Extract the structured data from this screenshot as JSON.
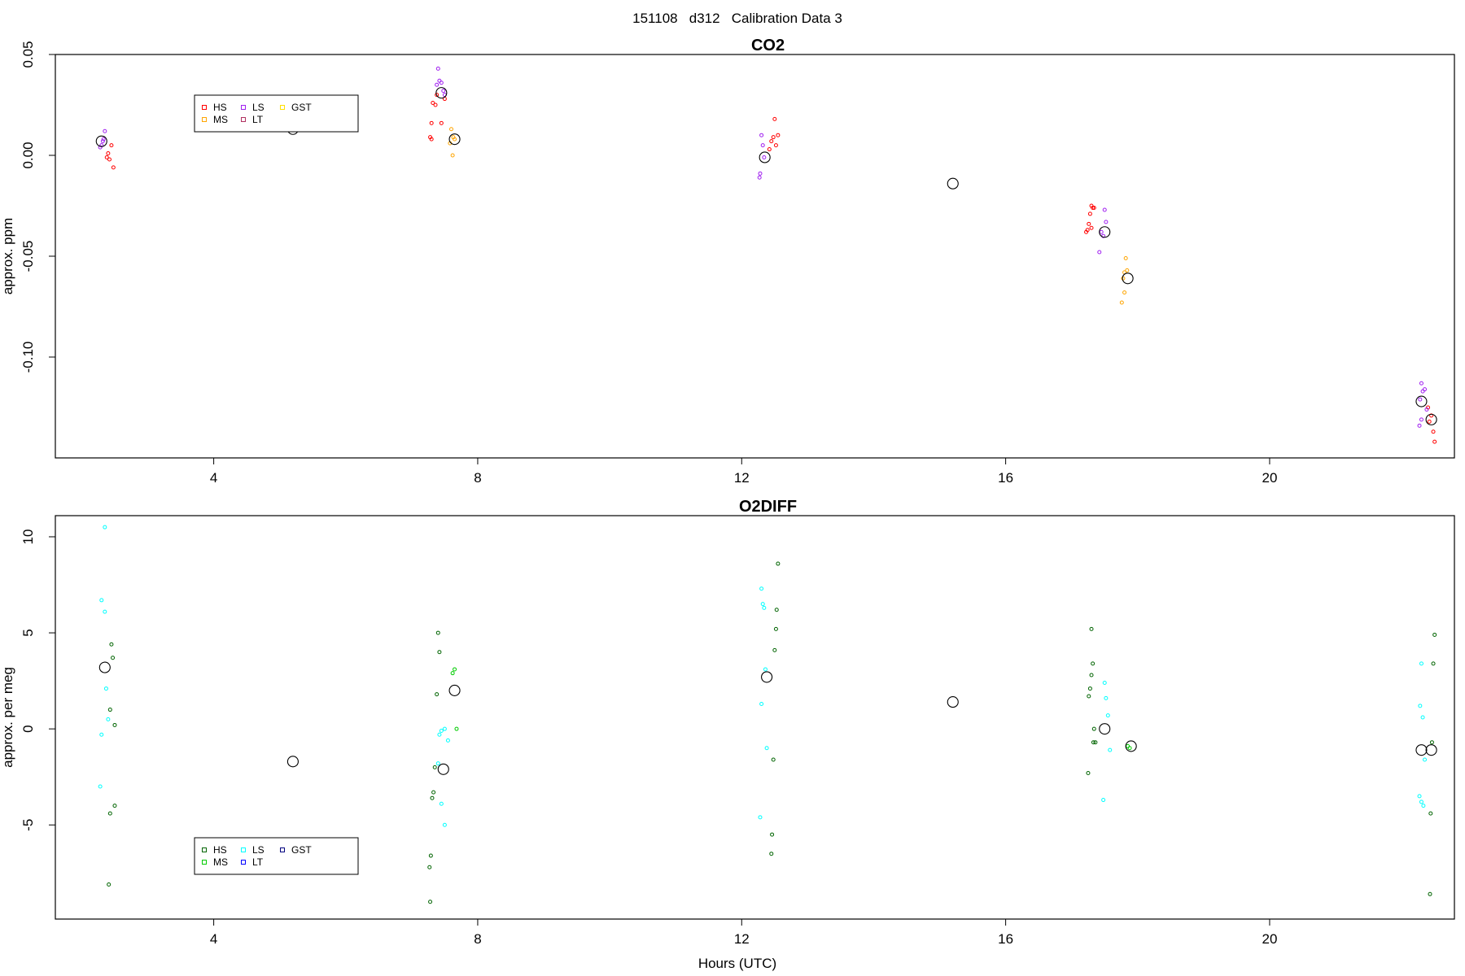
{
  "figure": {
    "title": "151108   d312   Calibration Data 3",
    "xlabel": "Hours (UTC)"
  },
  "chart_data": [
    {
      "type": "scatter",
      "title": "CO2",
      "xlabel": "",
      "ylabel": "approx. ppm",
      "xlim": [
        1.6,
        22.8
      ],
      "ylim": [
        -0.15,
        0.05
      ],
      "xticks": [
        4,
        8,
        12,
        16,
        20
      ],
      "yticks": [
        -0.1,
        -0.05,
        0.0,
        0.05
      ],
      "ytick_labels": [
        "-0.10",
        "-0.05",
        "0.00",
        "0.05"
      ],
      "grid": false,
      "legend": {
        "position": "top-left",
        "entries": [
          {
            "name": "HS",
            "color": "#ff0000"
          },
          {
            "name": "MS",
            "color": "#ffa500"
          },
          {
            "name": "LS",
            "color": "#a020f0"
          },
          {
            "name": "LT",
            "color": "#b03060"
          },
          {
            "name": "GST",
            "color": "#ffe000"
          }
        ]
      },
      "series": [
        {
          "name": "HS",
          "color": "#ff0000",
          "points": [
            [
              2.45,
              0.005
            ],
            [
              2.4,
              0.001
            ],
            [
              2.38,
              -0.001
            ],
            [
              2.42,
              -0.002
            ],
            [
              2.48,
              -0.006
            ],
            [
              7.3,
              0.016
            ],
            [
              7.32,
              0.026
            ],
            [
              7.36,
              0.025
            ],
            [
              7.38,
              0.03
            ],
            [
              7.28,
              0.009
            ],
            [
              7.3,
              0.008
            ],
            [
              7.45,
              0.016
            ],
            [
              7.5,
              0.028
            ],
            [
              12.45,
              0.007
            ],
            [
              12.48,
              0.009
            ],
            [
              12.5,
              0.018
            ],
            [
              12.52,
              0.005
            ],
            [
              12.42,
              0.003
            ],
            [
              12.55,
              0.01
            ],
            [
              17.3,
              -0.025
            ],
            [
              17.32,
              -0.026
            ],
            [
              17.34,
              -0.026
            ],
            [
              17.28,
              -0.029
            ],
            [
              17.26,
              -0.034
            ],
            [
              17.24,
              -0.037
            ],
            [
              17.22,
              -0.038
            ],
            [
              17.3,
              -0.036
            ],
            [
              22.4,
              -0.125
            ],
            [
              22.45,
              -0.129
            ],
            [
              22.48,
              -0.137
            ],
            [
              22.5,
              -0.142
            ],
            [
              22.42,
              -0.132
            ]
          ]
        },
        {
          "name": "MS",
          "color": "#ffa500",
          "points": [
            [
              7.6,
              0.013
            ],
            [
              7.63,
              0.009
            ],
            [
              7.58,
              0.006
            ],
            [
              7.65,
              0.008
            ],
            [
              7.62,
              0.0
            ],
            [
              17.82,
              -0.051
            ],
            [
              17.8,
              -0.058
            ],
            [
              17.78,
              -0.061
            ],
            [
              17.8,
              -0.068
            ],
            [
              17.76,
              -0.073
            ],
            [
              17.84,
              -0.057
            ]
          ]
        },
        {
          "name": "LS",
          "color": "#a020f0",
          "points": [
            [
              2.3,
              0.005
            ],
            [
              2.32,
              0.007
            ],
            [
              2.35,
              0.012
            ],
            [
              2.28,
              0.004
            ],
            [
              2.33,
              0.008
            ],
            [
              7.4,
              0.043
            ],
            [
              7.45,
              0.036
            ],
            [
              7.48,
              0.032
            ],
            [
              7.5,
              0.03
            ],
            [
              7.42,
              0.037
            ],
            [
              7.38,
              0.035
            ],
            [
              12.3,
              0.01
            ],
            [
              12.32,
              0.005
            ],
            [
              12.34,
              -0.001
            ],
            [
              12.28,
              -0.009
            ],
            [
              12.27,
              -0.011
            ],
            [
              17.5,
              -0.027
            ],
            [
              17.52,
              -0.033
            ],
            [
              17.45,
              -0.038
            ],
            [
              17.48,
              -0.04
            ],
            [
              17.42,
              -0.048
            ],
            [
              22.3,
              -0.113
            ],
            [
              22.32,
              -0.117
            ],
            [
              22.35,
              -0.116
            ],
            [
              22.28,
              -0.121
            ],
            [
              22.3,
              -0.131
            ],
            [
              22.27,
              -0.134
            ],
            [
              22.38,
              -0.126
            ]
          ]
        },
        {
          "name": "mean",
          "color": "#000000",
          "marker": "large-circle",
          "points": [
            [
              2.3,
              0.007
            ],
            [
              5.2,
              0.013
            ],
            [
              7.45,
              0.031
            ],
            [
              7.65,
              0.008
            ],
            [
              12.35,
              -0.001
            ],
            [
              15.2,
              -0.014
            ],
            [
              17.5,
              -0.038
            ],
            [
              17.85,
              -0.061
            ],
            [
              22.3,
              -0.122
            ],
            [
              22.45,
              -0.131
            ]
          ]
        }
      ]
    },
    {
      "type": "scatter",
      "title": "O2DIFF",
      "xlabel": "Hours (UTC)",
      "ylabel": "approx. per meg",
      "xlim": [
        1.6,
        22.8
      ],
      "ylim": [
        -9.9,
        11.1
      ],
      "xticks": [
        4,
        8,
        12,
        16,
        20
      ],
      "yticks": [
        -5,
        0,
        5,
        10
      ],
      "ytick_labels": [
        "-5",
        "0",
        "5",
        "10"
      ],
      "grid": false,
      "legend": {
        "position": "bottom-left",
        "entries": [
          {
            "name": "HS",
            "color": "#006400"
          },
          {
            "name": "MS",
            "color": "#00cc00"
          },
          {
            "name": "LS",
            "color": "#00ffff"
          },
          {
            "name": "LT",
            "color": "#0000ff"
          },
          {
            "name": "GST",
            "color": "#000080"
          }
        ]
      },
      "series": [
        {
          "name": "HS",
          "color": "#006400",
          "points": [
            [
              2.45,
              4.4
            ],
            [
              2.47,
              3.7
            ],
            [
              2.43,
              1.0
            ],
            [
              2.5,
              0.2
            ],
            [
              2.5,
              -4.0
            ],
            [
              2.43,
              -4.4
            ],
            [
              2.41,
              -8.1
            ],
            [
              7.4,
              5.0
            ],
            [
              7.42,
              4.0
            ],
            [
              7.38,
              1.8
            ],
            [
              7.35,
              -2.0
            ],
            [
              7.33,
              -3.3
            ],
            [
              7.31,
              -3.6
            ],
            [
              7.29,
              -6.6
            ],
            [
              7.27,
              -7.2
            ],
            [
              7.28,
              -9.0
            ],
            [
              12.55,
              8.6
            ],
            [
              12.53,
              6.2
            ],
            [
              12.52,
              5.2
            ],
            [
              12.5,
              4.1
            ],
            [
              12.48,
              -1.6
            ],
            [
              12.46,
              -5.5
            ],
            [
              12.45,
              -6.5
            ],
            [
              17.3,
              5.2
            ],
            [
              17.32,
              3.4
            ],
            [
              17.3,
              2.8
            ],
            [
              17.28,
              2.1
            ],
            [
              17.26,
              1.7
            ],
            [
              17.34,
              0.0
            ],
            [
              17.36,
              -0.7
            ],
            [
              17.33,
              -0.7
            ],
            [
              17.25,
              -2.3
            ],
            [
              22.5,
              4.9
            ],
            [
              22.48,
              3.4
            ],
            [
              22.46,
              -0.7
            ],
            [
              22.44,
              -4.4
            ],
            [
              22.43,
              -8.6
            ]
          ]
        },
        {
          "name": "MS",
          "color": "#00cc00",
          "points": [
            [
              7.65,
              3.1
            ],
            [
              7.62,
              2.9
            ],
            [
              7.68,
              0.0
            ],
            [
              17.85,
              -0.9
            ],
            [
              17.88,
              -1.0
            ]
          ]
        },
        {
          "name": "LS",
          "color": "#00ffff",
          "points": [
            [
              2.35,
              10.5
            ],
            [
              2.3,
              6.7
            ],
            [
              2.35,
              6.1
            ],
            [
              2.37,
              2.1
            ],
            [
              2.4,
              0.5
            ],
            [
              2.3,
              -0.3
            ],
            [
              2.28,
              -3.0
            ],
            [
              7.5,
              0.0
            ],
            [
              7.45,
              -0.1
            ],
            [
              7.42,
              -0.3
            ],
            [
              7.55,
              -0.6
            ],
            [
              7.4,
              -1.8
            ],
            [
              7.45,
              -3.9
            ],
            [
              7.5,
              -5.0
            ],
            [
              12.3,
              7.3
            ],
            [
              12.32,
              6.5
            ],
            [
              12.34,
              6.3
            ],
            [
              12.36,
              3.1
            ],
            [
              12.3,
              1.3
            ],
            [
              12.38,
              -1.0
            ],
            [
              12.28,
              -4.6
            ],
            [
              17.5,
              2.4
            ],
            [
              17.52,
              1.6
            ],
            [
              17.55,
              0.7
            ],
            [
              17.58,
              -1.1
            ],
            [
              17.48,
              -3.7
            ],
            [
              22.3,
              3.4
            ],
            [
              22.28,
              1.2
            ],
            [
              22.32,
              0.6
            ],
            [
              22.35,
              -1.6
            ],
            [
              22.27,
              -3.5
            ],
            [
              22.3,
              -3.8
            ],
            [
              22.33,
              -4.0
            ]
          ]
        },
        {
          "name": "mean",
          "color": "#000000",
          "marker": "large-circle",
          "points": [
            [
              2.35,
              3.2
            ],
            [
              5.2,
              -1.7
            ],
            [
              7.48,
              -2.1
            ],
            [
              7.65,
              2.0
            ],
            [
              12.38,
              2.7
            ],
            [
              15.2,
              1.4
            ],
            [
              17.5,
              0.0
            ],
            [
              17.9,
              -0.9
            ],
            [
              22.3,
              -1.1
            ],
            [
              22.45,
              -1.1
            ]
          ]
        }
      ]
    }
  ]
}
